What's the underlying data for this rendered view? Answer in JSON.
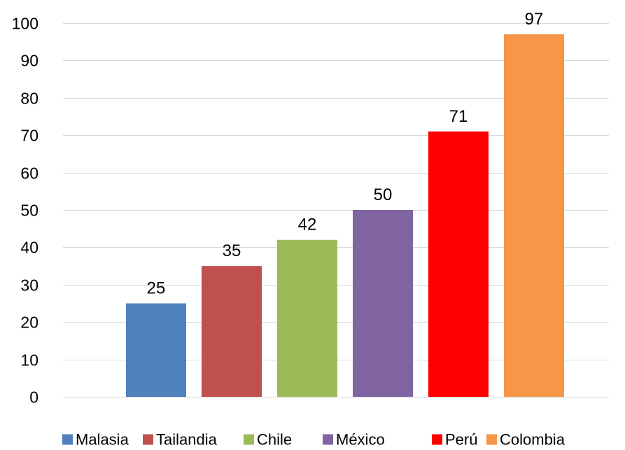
{
  "chart_data": {
    "type": "bar",
    "title": "",
    "xlabel": "",
    "ylabel": "",
    "categories": [
      "Malasia",
      "Tailandia",
      "Chile",
      "México",
      "Perú",
      "Colombia"
    ],
    "values": [
      25,
      35,
      42,
      50,
      71,
      97
    ],
    "colors": [
      "#4f81bd",
      "#c0504d",
      "#9bbb59",
      "#8064a2",
      "#ff0000",
      "#f79646"
    ],
    "ylim": [
      0,
      100
    ],
    "yticks": [
      0,
      10,
      20,
      30,
      40,
      50,
      60,
      70,
      80,
      90,
      100
    ],
    "grid": true,
    "data_labels": true,
    "legend_position": "bottom"
  }
}
